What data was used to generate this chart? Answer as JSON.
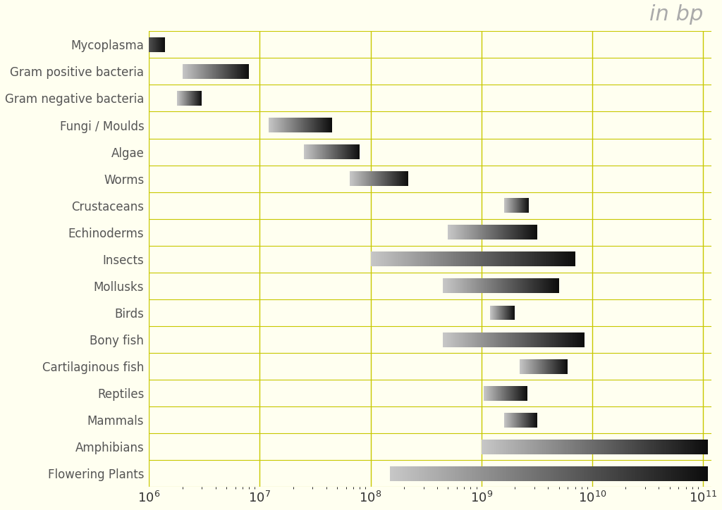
{
  "title": "in bp",
  "categories": [
    "Mycoplasma",
    "Gram positive bacteria",
    "Gram negative bacteria",
    "Fungi / Moulds",
    "Algae",
    "Worms",
    "Crustaceans",
    "Echinoderms",
    "Insects",
    "Mollusks",
    "Birds",
    "Bony fish",
    "Cartilaginous fish",
    "Reptiles",
    "Mammals",
    "Amphibians",
    "Flowering Plants"
  ],
  "bar_min": [
    550000.0,
    2000000.0,
    1800000.0,
    12000000.0,
    25000000.0,
    65000000.0,
    1600000000.0,
    500000000.0,
    100000000.0,
    450000000.0,
    1200000000.0,
    450000000.0,
    2200000000.0,
    1050000000.0,
    1600000000.0,
    1000000000.0,
    150000000.0
  ],
  "bar_max": [
    1400000.0,
    8000000.0,
    3000000.0,
    45000000.0,
    80000000.0,
    220000000.0,
    2700000000.0,
    3200000000.0,
    7000000000.0,
    5000000000.0,
    2000000000.0,
    8500000000.0,
    6000000000.0,
    2600000000.0,
    3200000000.0,
    110000000000.0,
    110000000000.0
  ],
  "xmin": 1000000.0,
  "xmax": 120000000000.0,
  "background_color": "#fffff0",
  "bar_height": 0.55,
  "grid_color": "#c8c800",
  "label_color": "#555555",
  "title_color": "#aaaaaa",
  "title_fontsize": 22,
  "label_fontsize": 12
}
